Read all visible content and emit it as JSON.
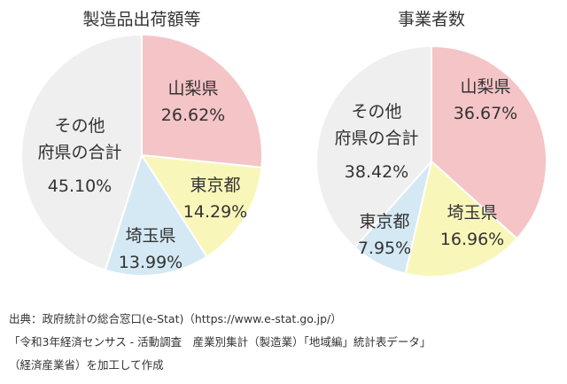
{
  "chart_data": [
    {
      "type": "pie",
      "title": "製造品出荷額等",
      "slices": [
        {
          "name": "山梨県",
          "value": 26.62,
          "label": "26.62%",
          "color": "#f5c4c7"
        },
        {
          "name": "東京都",
          "value": 14.29,
          "label": "14.29%",
          "color": "#f9f6b9"
        },
        {
          "name": "埼玉県",
          "value": 13.99,
          "label": "13.99%",
          "color": "#d4e9f4"
        },
        {
          "name": "その他\n府県の合計",
          "value": 45.1,
          "label": "45.10%",
          "color": "#efefef"
        }
      ]
    },
    {
      "type": "pie",
      "title": "事業者数",
      "slices": [
        {
          "name": "山梨県",
          "value": 36.67,
          "label": "36.67%",
          "color": "#f5c4c7"
        },
        {
          "name": "埼玉県",
          "value": 16.96,
          "label": "16.96%",
          "color": "#f9f6b9"
        },
        {
          "name": "東京都",
          "value": 7.95,
          "label": "7.95%",
          "color": "#d4e9f4"
        },
        {
          "name": "その他\n府県の合計",
          "value": 38.42,
          "label": "38.42%",
          "color": "#efefef"
        }
      ]
    }
  ],
  "source": {
    "line1": "出典：政府統計の総合窓口(e-Stat)（https://www.e-stat.go.jp/）",
    "line2": "「令和3年経済センサス - 活動調査　産業別集計（製造業）「地域編」統計表データ」",
    "line3": "（経済産業省）を加工して作成"
  }
}
